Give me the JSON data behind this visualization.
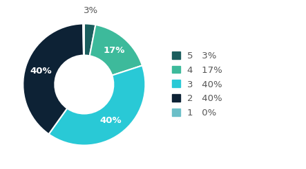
{
  "labels": [
    "5",
    "4",
    "3",
    "2",
    "1"
  ],
  "values": [
    3,
    17,
    40,
    40,
    0
  ],
  "colors": [
    "#1b5e5e",
    "#3dba9b",
    "#29c9d6",
    "#0d2235",
    "#6bbfc8"
  ],
  "legend_labels": [
    "5   3%",
    "4   17%",
    "3   40%",
    "2   40%",
    "1   0%"
  ],
  "autopct_show": [
    false,
    true,
    true,
    true,
    false
  ],
  "autopct_texts": [
    "3%",
    "17%",
    "40%",
    "40%",
    "0%"
  ],
  "outside_label_idx": 0,
  "outside_label_text": "3%",
  "background_color": "#ffffff",
  "wedge_edge_color": "#ffffff",
  "text_color": "#555555",
  "font_size_legend": 9.5,
  "font_size_autopct": 9.5,
  "font_size_outside": 9.5
}
